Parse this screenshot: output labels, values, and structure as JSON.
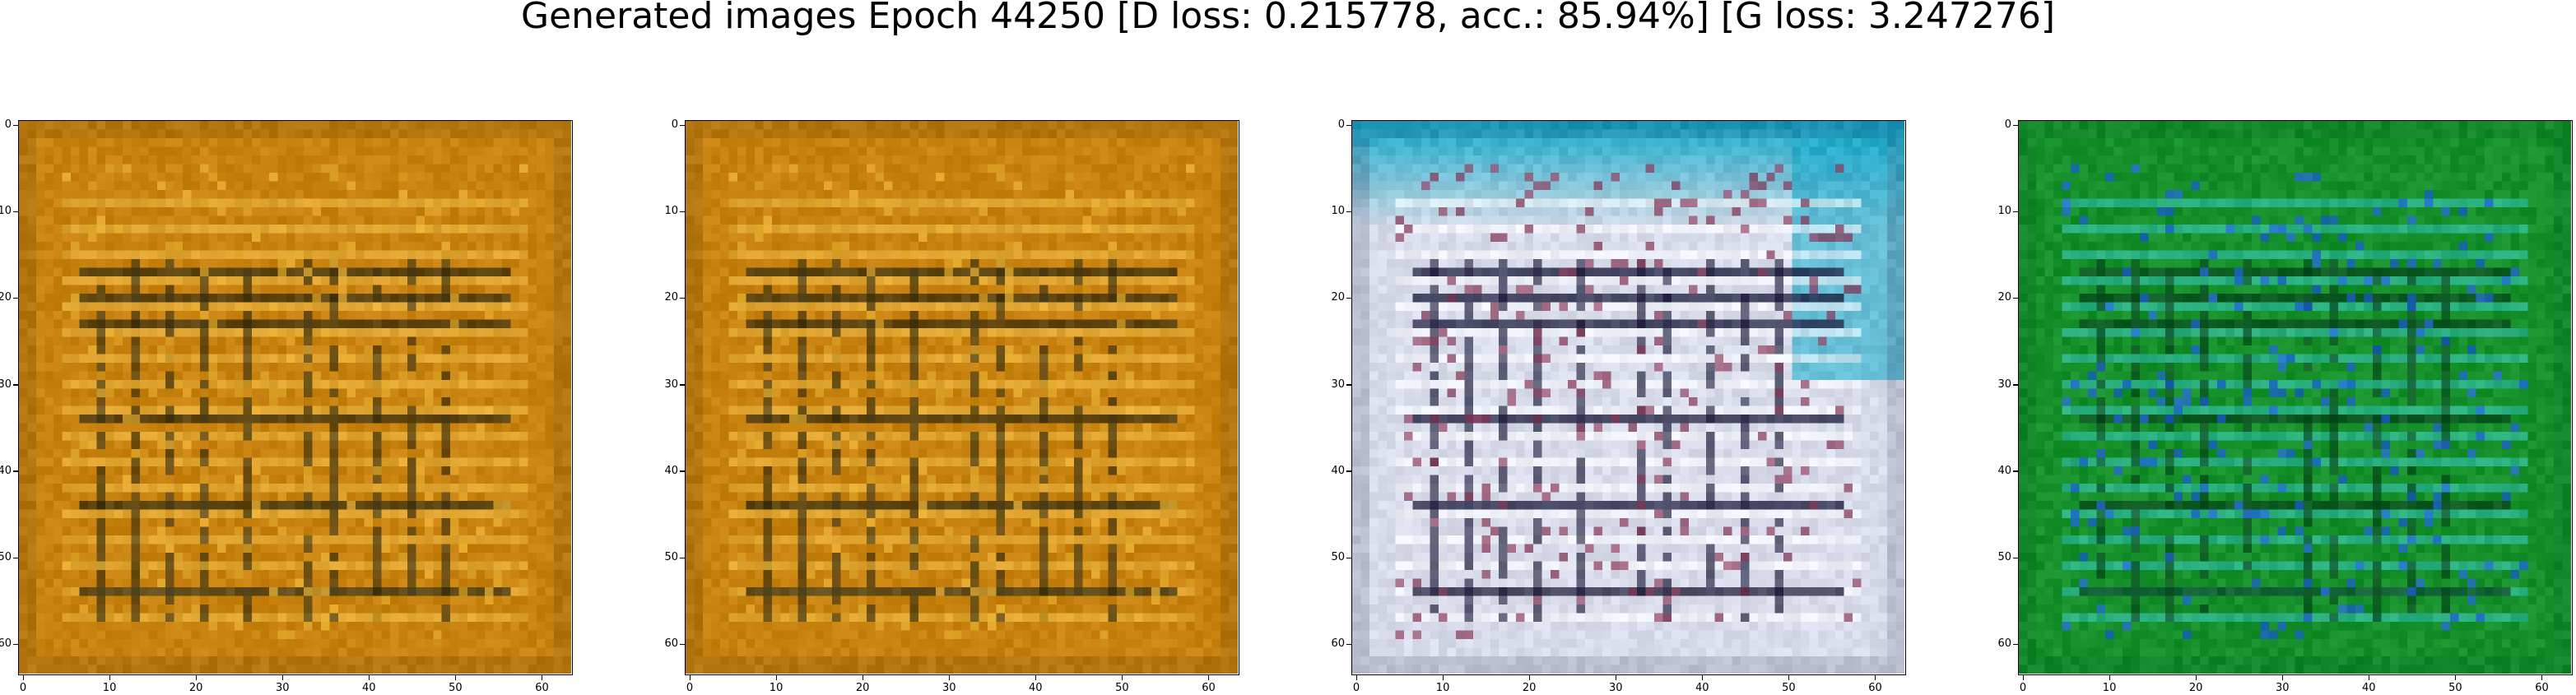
{
  "figure": {
    "title": "Generated images Epoch 44250 [D loss: 0.215778, acc.: 85.94%] [G loss: 3.247276]"
  },
  "chart_data": [
    {
      "type": "heatmap",
      "name": "generated-image-1",
      "xlim": [
        0,
        63
      ],
      "ylim": [
        63,
        0
      ],
      "xticks": [
        0,
        10,
        20,
        30,
        40,
        50,
        60
      ],
      "yticks": [
        0,
        10,
        20,
        30,
        40,
        50,
        60
      ],
      "palette": {
        "base": "#c8820f",
        "light": "#f0c04a",
        "dark": "#3a3010",
        "accent": "#e8b030"
      },
      "pattern": "grid"
    },
    {
      "type": "heatmap",
      "name": "generated-image-2",
      "xlim": [
        0,
        63
      ],
      "ylim": [
        63,
        0
      ],
      "xticks": [
        0,
        10,
        20,
        30,
        40,
        50,
        60
      ],
      "yticks": [
        0,
        10,
        20,
        30,
        40,
        50,
        60
      ],
      "palette": {
        "base": "#c8820f",
        "light": "#f0c04a",
        "dark": "#3a3010",
        "accent": "#e8b030"
      },
      "pattern": "grid"
    },
    {
      "type": "heatmap",
      "name": "generated-image-3",
      "xlim": [
        0,
        63
      ],
      "ylim": [
        63,
        0
      ],
      "xticks": [
        0,
        10,
        20,
        30,
        40,
        50,
        60
      ],
      "yticks": [
        0,
        10,
        20,
        30,
        40,
        50,
        60
      ],
      "palette": {
        "base": "#d8dcea",
        "top": "#1aa8c8",
        "dark": "#1a1a3a",
        "accent": "#8a3a5a"
      },
      "pattern": "grid-light"
    },
    {
      "type": "heatmap",
      "name": "generated-image-4",
      "xlim": [
        0,
        63
      ],
      "ylim": [
        63,
        0
      ],
      "xticks": [
        0,
        10,
        20,
        30,
        40,
        50,
        60
      ],
      "yticks": [
        0,
        10,
        20,
        30,
        40,
        50,
        60
      ],
      "palette": {
        "base": "#15902a",
        "light": "#3ac8c0",
        "dark": "#0a4a20",
        "accent": "#2060e0"
      },
      "pattern": "grid-green"
    }
  ]
}
